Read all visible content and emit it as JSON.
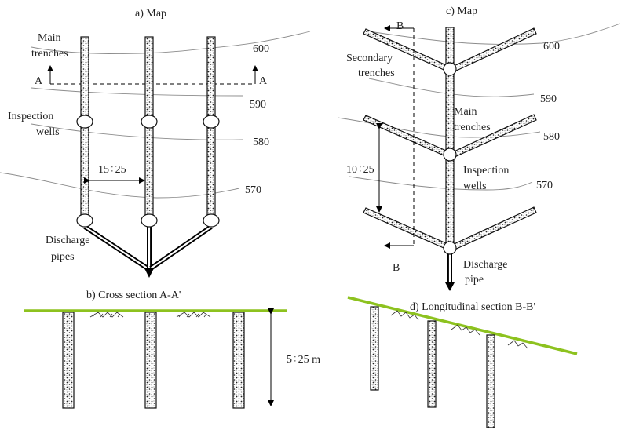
{
  "panel_a": {
    "title": "a) Map",
    "label_main_1": "Main",
    "label_main_2": "trenches",
    "label_insp_1": "Inspection",
    "label_insp_2": "wells",
    "label_dis_1": "Discharge",
    "label_dis_2": "pipes",
    "spacing": "15÷25",
    "section_left": "A",
    "section_right": "A",
    "contours": [
      "600",
      "590",
      "580",
      "570"
    ]
  },
  "panel_b": {
    "title": "b) Cross section A-A'",
    "depth": "5÷25 m"
  },
  "panel_c": {
    "title": "c) Map",
    "label_sec_1": "Secondary",
    "label_sec_2": "trenches",
    "label_main_1": "Main",
    "label_main_2": "trenches",
    "label_insp_1": "Inspection",
    "label_insp_2": "wells",
    "label_dis_1": "Discharge",
    "label_dis_2": "pipe",
    "spacing": "10÷25",
    "section_top": "B",
    "section_bottom": "B",
    "contours": [
      "600",
      "590",
      "580",
      "570"
    ]
  },
  "panel_d": {
    "title": "d) Longitudinal section B-B'"
  },
  "colors": {
    "ground": "#8dc21f",
    "contour": "#8c8c8c"
  }
}
